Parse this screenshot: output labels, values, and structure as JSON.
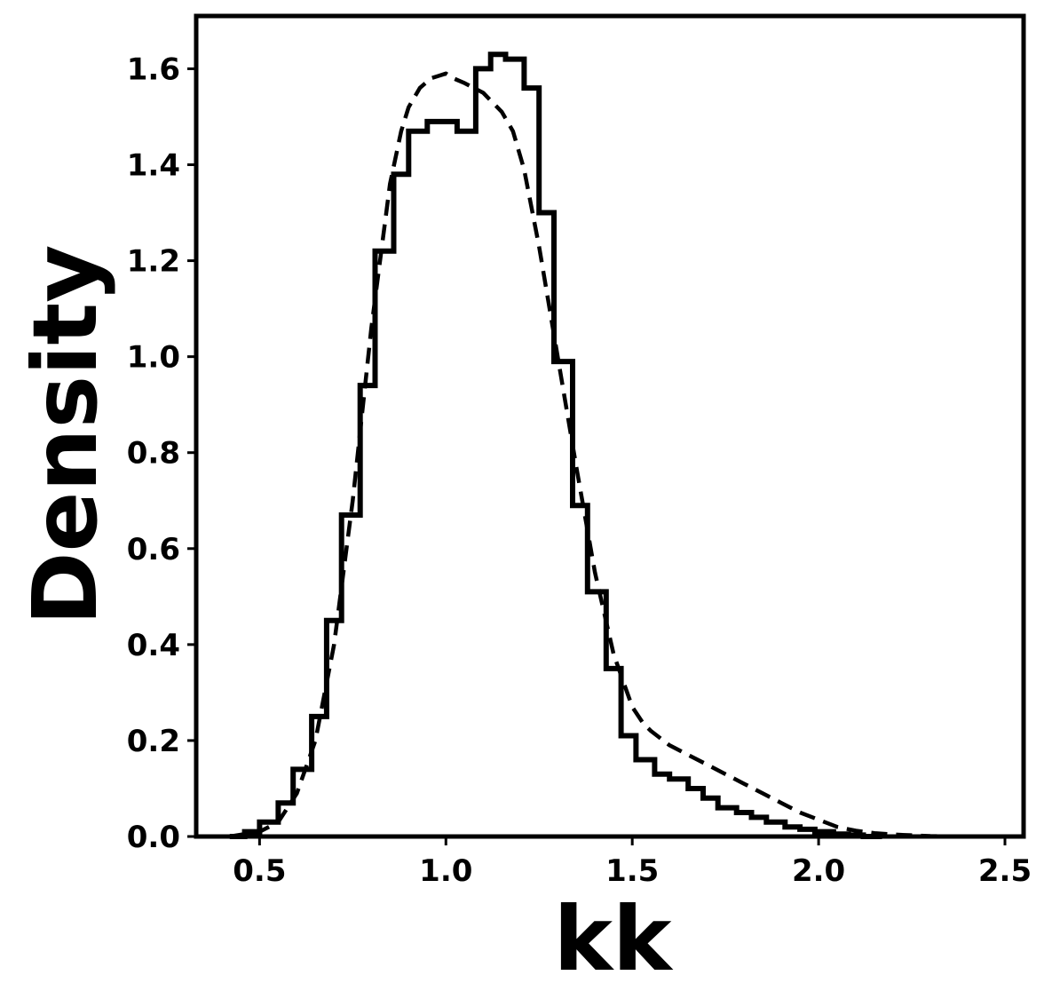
{
  "chart_data": {
    "type": "histogram",
    "title": "",
    "xlabel": "kk",
    "ylabel": "Density",
    "xlim": [
      0.33,
      2.55
    ],
    "ylim": [
      0,
      1.71
    ],
    "xticks": [
      "0.5",
      "1.0",
      "1.5",
      "2.0",
      "2.5"
    ],
    "yticks": [
      "0.0",
      "0.2",
      "0.4",
      "0.6",
      "0.8",
      "1.0",
      "1.2",
      "1.4",
      "1.6"
    ],
    "grid": false,
    "legend": "none",
    "line_color": "#000000",
    "series": [
      {
        "style": "step-solid",
        "bin_edges": [
          0.42,
          0.46,
          0.5,
          0.55,
          0.59,
          0.64,
          0.68,
          0.72,
          0.77,
          0.81,
          0.86,
          0.9,
          0.95,
          1.03,
          1.08,
          1.12,
          1.16,
          1.21,
          1.25,
          1.29,
          1.34,
          1.38,
          1.43,
          1.47,
          1.51,
          1.56,
          1.6,
          1.65,
          1.69,
          1.73,
          1.78,
          1.82,
          1.86,
          1.91,
          1.95,
          1.99,
          2.04,
          2.08,
          2.12,
          2.17
        ],
        "values": [
          0.0,
          0.01,
          0.03,
          0.07,
          0.14,
          0.25,
          0.45,
          0.67,
          0.94,
          1.22,
          1.38,
          1.47,
          1.49,
          1.47,
          1.6,
          1.63,
          1.62,
          1.56,
          1.3,
          0.99,
          0.69,
          0.51,
          0.35,
          0.21,
          0.16,
          0.13,
          0.12,
          0.1,
          0.08,
          0.06,
          0.05,
          0.04,
          0.03,
          0.02,
          0.015,
          0.01,
          0.005,
          0.003,
          0.0
        ]
      },
      {
        "style": "dashed",
        "x": [
          0.42,
          0.5,
          0.55,
          0.6,
          0.65,
          0.7,
          0.75,
          0.8,
          0.85,
          0.88,
          0.9,
          0.93,
          0.96,
          0.98,
          1.0,
          1.02,
          1.05,
          1.1,
          1.15,
          1.18,
          1.21,
          1.25,
          1.3,
          1.35,
          1.4,
          1.45,
          1.5,
          1.53,
          1.55,
          1.6,
          1.65,
          1.7,
          1.75,
          1.8,
          1.85,
          1.9,
          1.95,
          2.0,
          2.05,
          2.1,
          2.15,
          2.2,
          2.3,
          2.4
        ],
        "y": [
          0.0,
          0.01,
          0.03,
          0.09,
          0.2,
          0.4,
          0.7,
          1.06,
          1.36,
          1.47,
          1.52,
          1.56,
          1.58,
          1.585,
          1.59,
          1.58,
          1.57,
          1.55,
          1.51,
          1.47,
          1.39,
          1.23,
          1.0,
          0.77,
          0.55,
          0.38,
          0.27,
          0.235,
          0.22,
          0.19,
          0.17,
          0.15,
          0.13,
          0.11,
          0.09,
          0.07,
          0.05,
          0.035,
          0.02,
          0.012,
          0.007,
          0.004,
          0.001,
          0.0
        ]
      }
    ]
  }
}
